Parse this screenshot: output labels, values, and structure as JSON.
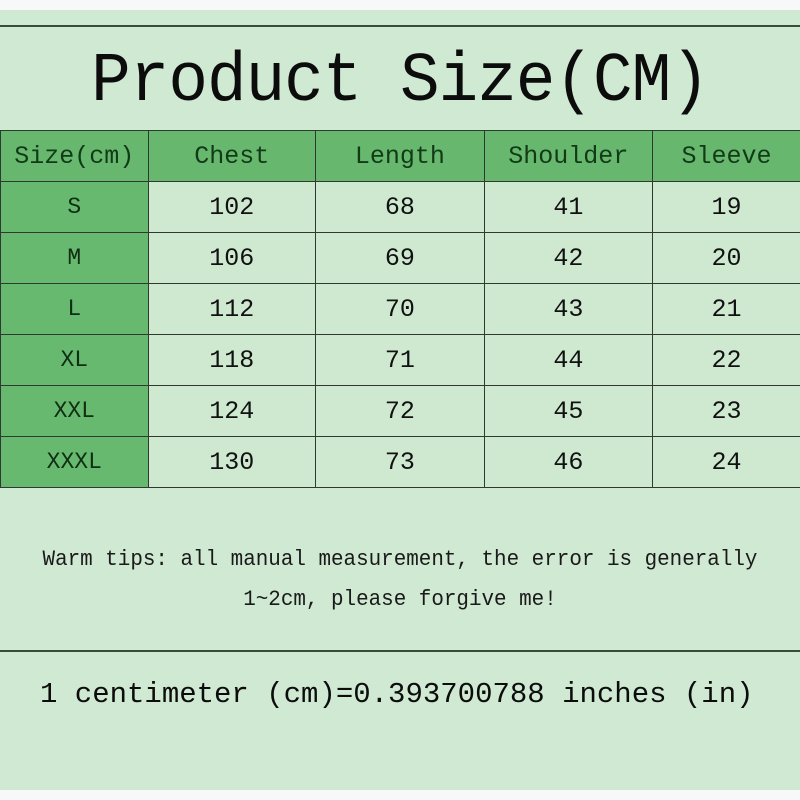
{
  "title": "Product Size(CM)",
  "table": {
    "headers": [
      "Size(cm)",
      "Chest",
      "Length",
      "Shoulder",
      "Sleeve"
    ],
    "rows": [
      [
        "S",
        "102",
        "68",
        "41",
        "19"
      ],
      [
        "M",
        "106",
        "69",
        "42",
        "20"
      ],
      [
        "L",
        "112",
        "70",
        "43",
        "21"
      ],
      [
        "XL",
        "118",
        "71",
        "44",
        "22"
      ],
      [
        "XXL",
        "124",
        "72",
        "45",
        "23"
      ],
      [
        "XXXL",
        "130",
        "73",
        "46",
        "24"
      ]
    ]
  },
  "tips": {
    "line1": "Warm tips: all manual measurement, the error is generally",
    "line2": "1~2cm, please forgive me!"
  },
  "conversion": "1 centimeter (cm)=0.393700788 inches (in)",
  "colors": {
    "background": "#d0e9d2",
    "header": "#67b86e",
    "size_column": "#66b96e"
  }
}
